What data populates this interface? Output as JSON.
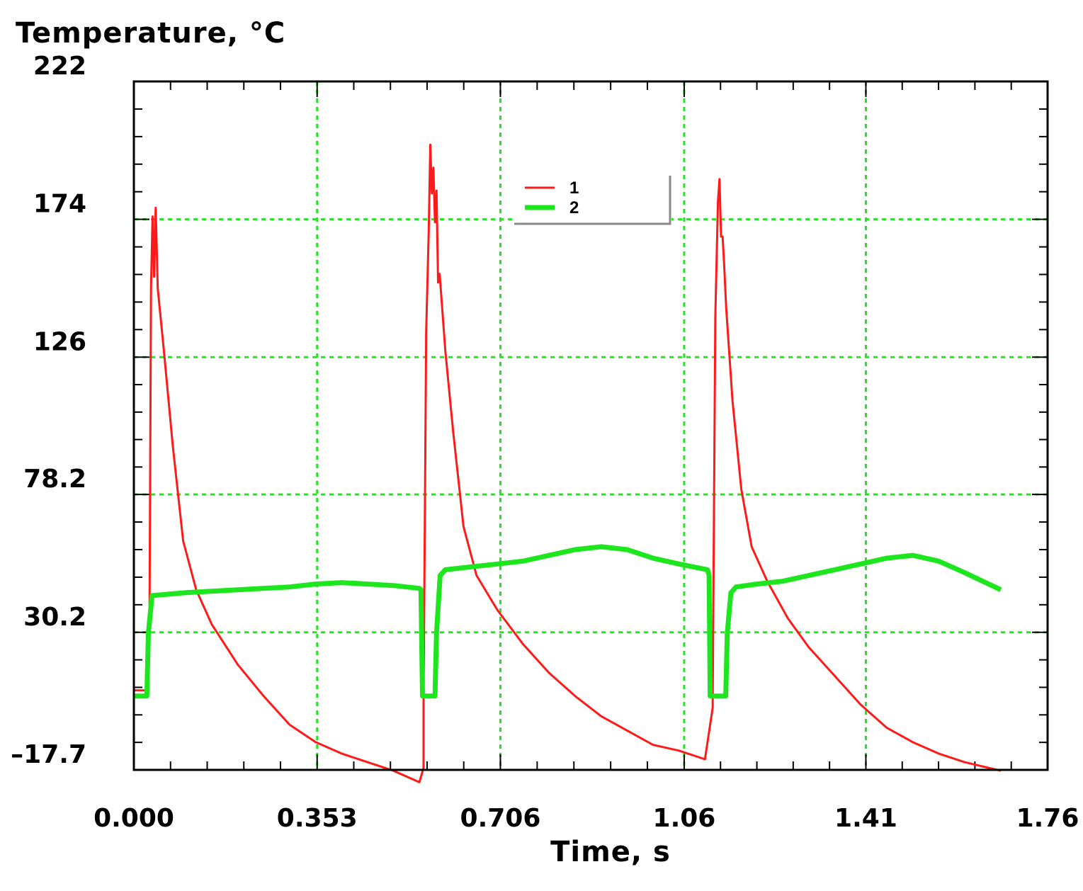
{
  "chart_data": {
    "type": "line",
    "title": "",
    "ylabel": "Temperature, °C",
    "xlabel": "Time, s",
    "xlim": [
      0,
      1.76
    ],
    "ylim": [
      -17.7,
      222
    ],
    "xticks": [
      0,
      0.353,
      0.706,
      1.06,
      1.41,
      1.76
    ],
    "xtick_labels": [
      "0.000",
      "0.353",
      "0.706",
      "1.06",
      "1.41",
      "1.76"
    ],
    "yticks": [
      -17.7,
      30.2,
      78.2,
      126,
      174,
      222
    ],
    "ytick_labels": [
      "–17.7",
      "30.2",
      "78.2",
      "126",
      "174",
      "222"
    ],
    "grid": true,
    "legend_position": "upper-center",
    "series": [
      {
        "name": "1",
        "color": "#ff1a1a",
        "x": [
          0,
          0.025,
          0.03,
          0.033,
          0.036,
          0.039,
          0.042,
          0.046,
          0.058,
          0.075,
          0.095,
          0.12,
          0.15,
          0.2,
          0.25,
          0.3,
          0.35,
          0.4,
          0.45,
          0.5,
          0.55,
          0.558,
          0.558,
          0.563,
          0.568,
          0.571,
          0.574,
          0.577,
          0.58,
          0.583,
          0.586,
          0.589,
          0.6,
          0.615,
          0.635,
          0.66,
          0.7,
          0.75,
          0.8,
          0.85,
          0.9,
          0.95,
          1.0,
          1.05,
          1.1,
          1.115,
          1.115,
          1.12,
          1.125,
          1.128,
          1.131,
          1.134,
          1.137,
          1.141,
          1.153,
          1.17,
          1.19,
          1.22,
          1.26,
          1.3,
          1.35,
          1.4,
          1.45,
          1.5,
          1.55,
          1.6,
          1.67
        ],
        "y": [
          10,
          10,
          30,
          150,
          175,
          154,
          178,
          150,
          128,
          95,
          62,
          45,
          33,
          19,
          8,
          -2,
          -8,
          -12,
          -15,
          -18,
          -22,
          -17,
          7,
          135,
          170,
          200,
          183,
          192,
          173,
          184,
          152,
          155,
          128,
          100,
          67,
          50,
          38,
          26,
          16,
          8,
          1,
          -4,
          -9,
          -11,
          -14,
          4,
          8,
          140,
          180,
          188,
          168,
          168,
          158,
          143,
          111,
          80,
          60,
          48,
          35,
          25,
          15,
          5,
          -3,
          -8,
          -12,
          -15,
          -18
        ]
      },
      {
        "name": "2",
        "color": "#1ee61e",
        "x": [
          0,
          0.025,
          0.028,
          0.035,
          0.1,
          0.2,
          0.3,
          0.35,
          0.4,
          0.45,
          0.5,
          0.55,
          0.553,
          0.556,
          0.58,
          0.583,
          0.59,
          0.6,
          0.65,
          0.7,
          0.75,
          0.8,
          0.85,
          0.9,
          0.95,
          1.0,
          1.05,
          1.105,
          1.108,
          1.11,
          1.14,
          1.143,
          1.15,
          1.16,
          1.2,
          1.25,
          1.3,
          1.35,
          1.4,
          1.45,
          1.5,
          1.55,
          1.6,
          1.67
        ],
        "y": [
          8,
          8,
          30,
          43,
          44,
          45,
          46,
          47,
          47.5,
          47,
          46.5,
          45.5,
          45,
          8,
          8,
          30,
          50,
          52,
          53,
          54,
          55,
          57,
          59,
          60,
          59,
          56,
          54,
          52,
          50,
          8,
          8,
          30,
          44,
          46,
          47,
          48,
          50,
          52,
          54,
          56,
          57,
          55,
          51,
          45
        ]
      }
    ]
  }
}
